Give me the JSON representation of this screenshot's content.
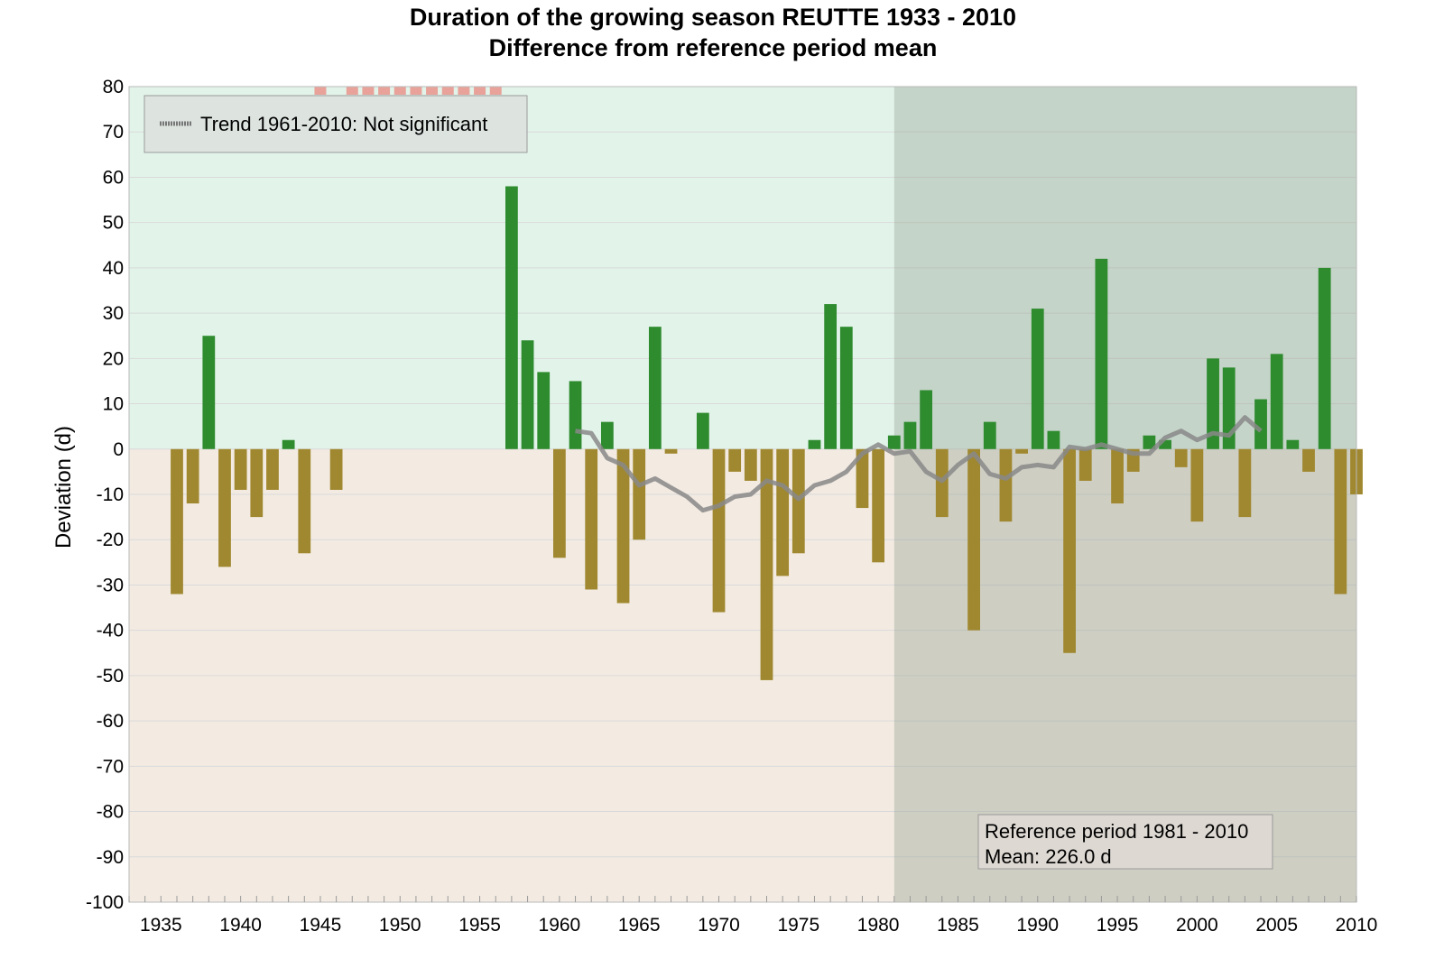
{
  "chart_data": {
    "type": "bar",
    "title": "Duration of the growing season REUTTE 1933 - 2010",
    "subtitle": "Difference from reference period mean",
    "ylabel": "Deviation (d)",
    "xlabel": "",
    "xlim": [
      1933,
      2010
    ],
    "ylim": [
      -100,
      80
    ],
    "yticks": [
      80,
      70,
      60,
      50,
      40,
      30,
      20,
      10,
      0,
      -10,
      -20,
      -30,
      -40,
      -50,
      -60,
      -70,
      -80,
      -90,
      -100
    ],
    "xticks": [
      1935,
      1940,
      1945,
      1950,
      1955,
      1960,
      1965,
      1970,
      1975,
      1980,
      1985,
      1990,
      1995,
      2000,
      2005,
      2010
    ],
    "grid": true,
    "colors": {
      "positive_bar": "#2e8b2e",
      "negative_bar": "#a08830",
      "positive_bg": "#e2f4ea",
      "negative_bg": "#f3ebe2",
      "reference_shade": "#9aa898",
      "trend_line": "#888888",
      "missing_marker": "#e8a29a"
    },
    "series": [
      {
        "values": [
          [
            1936,
            -32
          ],
          [
            1937,
            -12
          ],
          [
            1938,
            25
          ],
          [
            1939,
            -26
          ],
          [
            1940,
            -9
          ],
          [
            1941,
            -15
          ],
          [
            1942,
            -9
          ],
          [
            1943,
            2
          ],
          [
            1944,
            -23
          ],
          [
            1946,
            -9
          ],
          [
            1957,
            58
          ],
          [
            1958,
            24
          ],
          [
            1959,
            17
          ],
          [
            1960,
            -24
          ],
          [
            1961,
            15
          ],
          [
            1962,
            -31
          ],
          [
            1963,
            6
          ],
          [
            1964,
            -34
          ],
          [
            1965,
            -20
          ],
          [
            1966,
            27
          ],
          [
            1967,
            -1
          ],
          [
            1969,
            8
          ],
          [
            1970,
            -36
          ],
          [
            1971,
            -5
          ],
          [
            1972,
            -7
          ],
          [
            1973,
            -51
          ],
          [
            1974,
            -28
          ],
          [
            1975,
            -23
          ],
          [
            1976,
            2
          ],
          [
            1977,
            32
          ],
          [
            1978,
            27
          ],
          [
            1979,
            -13
          ],
          [
            1980,
            -25
          ],
          [
            1981,
            3
          ],
          [
            1982,
            6
          ],
          [
            1983,
            13
          ],
          [
            1984,
            -15
          ],
          [
            1986,
            -40
          ],
          [
            1987,
            6
          ],
          [
            1988,
            -16
          ],
          [
            1989,
            -1
          ],
          [
            1990,
            31
          ],
          [
            1991,
            4
          ],
          [
            1992,
            -45
          ],
          [
            1993,
            -7
          ],
          [
            1994,
            42
          ],
          [
            1995,
            -12
          ],
          [
            1996,
            -5
          ],
          [
            1997,
            3
          ],
          [
            1998,
            2
          ],
          [
            1999,
            -4
          ],
          [
            2000,
            -16
          ],
          [
            2001,
            20
          ],
          [
            2002,
            18
          ],
          [
            2003,
            -15
          ],
          [
            2004,
            11
          ],
          [
            2005,
            21
          ],
          [
            2006,
            2
          ],
          [
            2007,
            -5
          ],
          [
            2008,
            40
          ],
          [
            2009,
            -32
          ],
          [
            2010,
            -10
          ]
        ]
      }
    ],
    "trend": {
      "label": "Trend 1961-2010: Not significant",
      "points": [
        [
          1961,
          4
        ],
        [
          1962,
          3.5
        ],
        [
          1963,
          -2
        ],
        [
          1964,
          -3.5
        ],
        [
          1965,
          -8
        ],
        [
          1966,
          -6.5
        ],
        [
          1967,
          -8.5
        ],
        [
          1968,
          -10.5
        ],
        [
          1969,
          -13.5
        ],
        [
          1970,
          -12.5
        ],
        [
          1971,
          -10.5
        ],
        [
          1972,
          -10
        ],
        [
          1973,
          -7
        ],
        [
          1974,
          -8
        ],
        [
          1975,
          -11
        ],
        [
          1976,
          -8
        ],
        [
          1977,
          -7
        ],
        [
          1978,
          -5
        ],
        [
          1979,
          -1
        ],
        [
          1980,
          1
        ],
        [
          1981,
          -1
        ],
        [
          1982,
          -0.5
        ],
        [
          1983,
          -5
        ],
        [
          1984,
          -7
        ],
        [
          1985,
          -3.5
        ],
        [
          1986,
          -1
        ],
        [
          1987,
          -5.5
        ],
        [
          1988,
          -6.5
        ],
        [
          1989,
          -4
        ],
        [
          1990,
          -3.5
        ],
        [
          1991,
          -4
        ],
        [
          1992,
          0.5
        ],
        [
          1993,
          0
        ],
        [
          1994,
          1
        ],
        [
          1995,
          0
        ],
        [
          1996,
          -1
        ],
        [
          1997,
          -1
        ],
        [
          1998,
          2.5
        ],
        [
          1999,
          4
        ],
        [
          2000,
          2
        ],
        [
          2001,
          3.5
        ],
        [
          2002,
          3
        ],
        [
          2003,
          7
        ],
        [
          2004,
          4
        ]
      ]
    },
    "missing_years": [
      1945,
      1947,
      1948,
      1949,
      1950,
      1951,
      1952,
      1953,
      1954,
      1955,
      1956
    ],
    "reference_period": {
      "start": 1981,
      "end": 2010,
      "line1": "Reference period 1981 - 2010",
      "line2": "Mean: 226.0 d"
    },
    "legend_position": "top-left"
  }
}
